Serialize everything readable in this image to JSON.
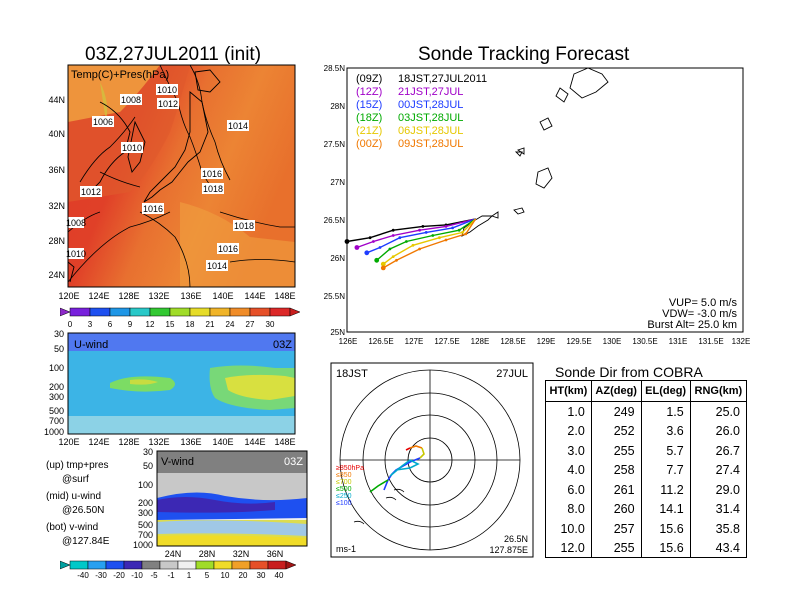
{
  "left": {
    "title": "03Z,27JUL2011 (init)",
    "map_label": "Temp(C)+Pres(hPa)",
    "lat_ticks": [
      "44N",
      "40N",
      "36N",
      "32N",
      "28N",
      "24N"
    ],
    "lon_ticks": [
      "120E",
      "124E",
      "128E",
      "132E",
      "136E",
      "140E",
      "144E",
      "148E"
    ],
    "pressure_labels": [
      "1010",
      "1008",
      "1012",
      "1006",
      "1010",
      "1014",
      "1016",
      "1018",
      "1012",
      "1016",
      "1018",
      "1008",
      "1016",
      "1010",
      "1014"
    ],
    "temp_colorbar": [
      "0",
      "3",
      "6",
      "9",
      "12",
      "15",
      "18",
      "21",
      "24",
      "27",
      "30"
    ]
  },
  "uwind": {
    "label": "U-wind",
    "time": "03Z",
    "p_ticks": [
      "30",
      "50",
      "100",
      "200",
      "300",
      "500",
      "700",
      "1000"
    ],
    "lon_ticks": [
      "120E",
      "124E",
      "128E",
      "132E",
      "136E",
      "140E",
      "144E",
      "148E"
    ]
  },
  "vwind": {
    "label": "V-wind",
    "time": "03Z",
    "p_ticks": [
      "30",
      "50",
      "100",
      "200",
      "300",
      "500",
      "700",
      "1000"
    ],
    "lat_ticks": [
      "24N",
      "28N",
      "32N",
      "36N"
    ]
  },
  "legend_notes": {
    "up": "(up) tmp+pres",
    "up2": "@surf",
    "mid": "(mid) u-wind",
    "mid2": "@26.50N",
    "bot": "(bot) v-wind",
    "bot2": "@127.84E"
  },
  "wind_colorbar": [
    "-40",
    "-30",
    "-20",
    "-10",
    "-5",
    "-1",
    "1",
    "5",
    "10",
    "20",
    "30",
    "40"
  ],
  "main": {
    "title": "Sonde Tracking Forecast",
    "lat_ticks": [
      "28.5N",
      "28N",
      "27.5N",
      "27N",
      "26.5N",
      "26N",
      "25.5N",
      "25N"
    ],
    "lon_ticks": [
      "126E",
      "126.5E",
      "127E",
      "127.5E",
      "128E",
      "128.5E",
      "129E",
      "129.5E",
      "130E",
      "130.5E",
      "131E",
      "131.5E",
      "132E"
    ],
    "runs": [
      {
        "code": "(09Z)",
        "time": "18JST,27JUL2011",
        "color": "#000000"
      },
      {
        "code": "(12Z)",
        "time": "21JST,27JUL",
        "color": "#a000c8"
      },
      {
        "code": "(15Z)",
        "time": "00JST,28JUL",
        "color": "#1e3cff"
      },
      {
        "code": "(18Z)",
        "time": "03JST,28JUL",
        "color": "#00aa00"
      },
      {
        "code": "(21Z)",
        "time": "06JST,28JUL",
        "color": "#e6c800"
      },
      {
        "code": "(00Z)",
        "time": "09JST,28JUL",
        "color": "#f07800"
      }
    ],
    "vup": "VUP=  5.0  m/s",
    "vdw": "VDW=  -3.0  m/s",
    "burst": "Burst Alt=  25.0  km"
  },
  "hodo": {
    "time": "18JST",
    "date": "27JUL",
    "lat": "26.5N",
    "lon": "127.875E",
    "unit": "ms-1",
    "levels": [
      "≥850hPa",
      "≤850",
      "≤700",
      "≤500",
      "≤250",
      "≤100"
    ],
    "level_colors": [
      "#e60000",
      "#f07800",
      "#c8c800",
      "#00aa00",
      "#00aacc",
      "#1e3cff"
    ]
  },
  "table": {
    "title": "Sonde Dir from COBRA",
    "headers": [
      "HT(km)",
      "AZ(deg)",
      "EL(deg)",
      "RNG(km)"
    ],
    "rows": [
      [
        "1.0",
        "249",
        "1.5",
        "25.0"
      ],
      [
        "2.0",
        "252",
        "3.6",
        "26.0"
      ],
      [
        "3.0",
        "255",
        "5.7",
        "26.7"
      ],
      [
        "4.0",
        "258",
        "7.7",
        "27.4"
      ],
      [
        "6.0",
        "261",
        "11.2",
        "29.0"
      ],
      [
        "8.0",
        "260",
        "14.1",
        "31.4"
      ],
      [
        "10.0",
        "257",
        "15.6",
        "35.8"
      ],
      [
        "12.0",
        "255",
        "15.6",
        "43.4"
      ]
    ]
  },
  "chart_data": {
    "type": "line",
    "title": "Sonde Tracking Forecast",
    "xlim": [
      126,
      132
    ],
    "ylim": [
      25,
      28.5
    ],
    "series": [
      {
        "name": "(09Z)",
        "color": "#000000",
        "points": [
          [
            127.95,
            26.5
          ],
          [
            127.5,
            26.42
          ],
          [
            127.15,
            26.4
          ],
          [
            126.7,
            26.35
          ],
          [
            126.35,
            26.25
          ],
          [
            126.0,
            26.2
          ]
        ]
      },
      {
        "name": "(12Z)",
        "color": "#a000c8",
        "points": [
          [
            127.95,
            26.5
          ],
          [
            127.5,
            26.4
          ],
          [
            127.1,
            26.35
          ],
          [
            126.7,
            26.28
          ],
          [
            126.4,
            26.2
          ],
          [
            126.15,
            26.12
          ]
        ]
      },
      {
        "name": "(15Z)",
        "color": "#1e3cff",
        "points": [
          [
            127.95,
            26.5
          ],
          [
            127.6,
            26.38
          ],
          [
            127.2,
            26.32
          ],
          [
            126.8,
            26.25
          ],
          [
            126.5,
            26.12
          ],
          [
            126.3,
            26.05
          ]
        ]
      },
      {
        "name": "(18Z)",
        "color": "#00aa00",
        "points": [
          [
            127.95,
            26.5
          ],
          [
            127.7,
            26.35
          ],
          [
            127.3,
            26.28
          ],
          [
            126.9,
            26.2
          ],
          [
            126.65,
            26.1
          ],
          [
            126.45,
            25.95
          ]
        ]
      },
      {
        "name": "(21Z)",
        "color": "#e6c800",
        "points": [
          [
            127.95,
            26.5
          ],
          [
            127.75,
            26.32
          ],
          [
            127.4,
            26.25
          ],
          [
            127.0,
            26.15
          ],
          [
            126.7,
            26.0
          ],
          [
            126.55,
            25.9
          ]
        ]
      },
      {
        "name": "(00Z)",
        "color": "#f07800",
        "points": [
          [
            127.95,
            26.5
          ],
          [
            127.8,
            26.3
          ],
          [
            127.5,
            26.22
          ],
          [
            127.1,
            26.1
          ],
          [
            126.75,
            25.95
          ],
          [
            126.55,
            25.85
          ]
        ]
      }
    ]
  }
}
